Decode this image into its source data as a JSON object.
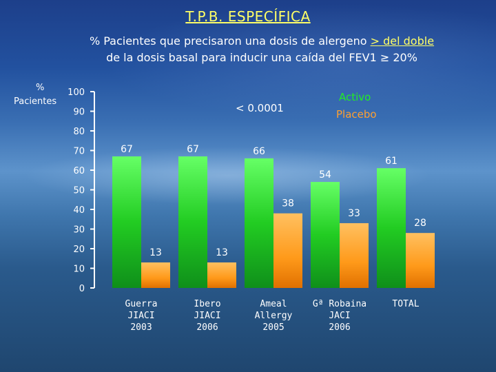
{
  "title": "T.P.B. ESPECÍFICA",
  "subtitle": {
    "line1_prefix": "% Pacientes que precisaron una dosis de alergeno ",
    "line1_emph": "> del doble",
    "line2": "de la dosis basal para inducir una caída del FEV1 ≥ 20%"
  },
  "annotation": "< 0.0001",
  "colors": {
    "active": "#22cc22",
    "placebo": "#ff9a1a",
    "axis": "#ffffff"
  },
  "chart_data": {
    "type": "bar",
    "ylabel_line1": "%",
    "ylabel_line2": "Pacientes",
    "ylim": [
      0,
      100
    ],
    "yticks": [
      0,
      10,
      20,
      30,
      40,
      50,
      60,
      70,
      80,
      90,
      100
    ],
    "categories": [
      [
        "Guerra",
        "JIACI",
        "2003"
      ],
      [
        "Ibero",
        "JIACI",
        "2006"
      ],
      [
        "Ameal",
        "Allergy",
        "2005"
      ],
      [
        "Gª Robaina",
        "JACI",
        "2006"
      ],
      [
        "TOTAL"
      ]
    ],
    "series": [
      {
        "name": "Activo",
        "values": [
          67,
          67,
          66,
          54,
          61
        ]
      },
      {
        "name": "Placebo",
        "values": [
          13,
          13,
          38,
          33,
          28
        ]
      }
    ],
    "legend_placement": "top-right",
    "grid": false
  }
}
